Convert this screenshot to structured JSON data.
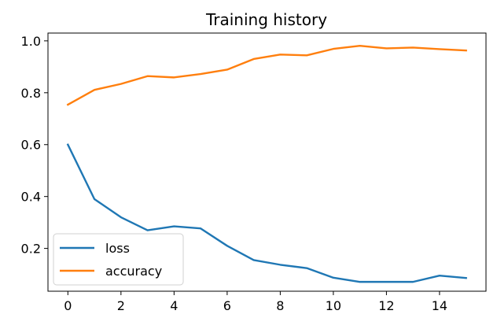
{
  "chart_data": {
    "type": "line",
    "title": "Training history",
    "xlabel": "",
    "ylabel": "",
    "x": [
      0,
      1,
      2,
      3,
      4,
      5,
      6,
      7,
      8,
      9,
      10,
      11,
      12,
      13,
      14,
      15
    ],
    "xlim": [
      -0.75,
      15.75
    ],
    "ylim": [
      0.035,
      1.03
    ],
    "xticks": [
      0,
      2,
      4,
      6,
      8,
      10,
      12,
      14
    ],
    "xtick_labels": [
      "0",
      "2",
      "4",
      "6",
      "8",
      "10",
      "12",
      "14"
    ],
    "yticks": [
      0.2,
      0.4,
      0.6,
      0.8,
      1.0
    ],
    "ytick_labels": [
      "0.2",
      "0.4",
      "0.6",
      "0.8",
      "1.0"
    ],
    "grid": false,
    "legend_position": "lower-left",
    "series": [
      {
        "name": "loss",
        "color": "#1f77b4",
        "values": [
          0.6,
          0.39,
          0.32,
          0.27,
          0.285,
          0.277,
          0.21,
          0.155,
          0.137,
          0.124,
          0.087,
          0.071,
          0.071,
          0.071,
          0.095,
          0.086
        ]
      },
      {
        "name": "accuracy",
        "color": "#ff7f0e",
        "values": [
          0.754,
          0.811,
          0.834,
          0.864,
          0.859,
          0.872,
          0.889,
          0.93,
          0.947,
          0.944,
          0.969,
          0.981,
          0.971,
          0.974,
          0.968,
          0.963
        ]
      }
    ]
  }
}
